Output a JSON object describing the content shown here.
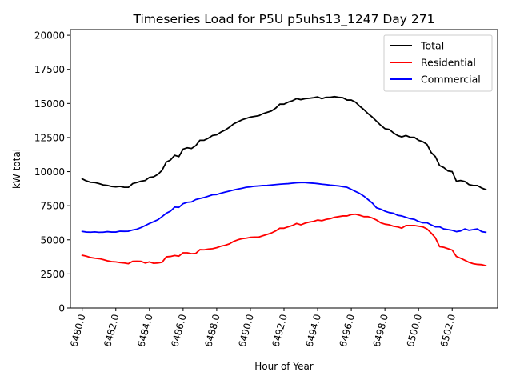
{
  "chart_data": {
    "type": "line",
    "title": "Timeseries Load for P5U p5uhs13_1247  Day 271",
    "xlabel": "Hour of Year",
    "ylabel": "kW total",
    "xlim": [
      6479.3,
      6504.7
    ],
    "ylim": [
      0,
      20417
    ],
    "x_ticks": [
      6480.0,
      6482.0,
      6484.0,
      6486.0,
      6488.0,
      6490.0,
      6492.0,
      6494.0,
      6496.0,
      6498.0,
      6500.0,
      6502.0
    ],
    "x_tick_labels": [
      "6480.0",
      "6482.0",
      "6484.0",
      "6486.0",
      "6488.0",
      "6490.0",
      "6492.0",
      "6494.0",
      "6496.0",
      "6498.0",
      "6500.0",
      "6502.0"
    ],
    "y_ticks": [
      0,
      2500,
      5000,
      7500,
      10000,
      12500,
      15000,
      17500,
      20000
    ],
    "y_tick_labels": [
      "0",
      "2500",
      "5000",
      "7500",
      "10000",
      "12500",
      "15000",
      "17500",
      "20000"
    ],
    "legend_position": "upper right",
    "x_start": 6480,
    "x_step": 0.25,
    "series": [
      {
        "name": "Total",
        "color": "#000000",
        "values": [
          9470,
          9320,
          9220,
          9200,
          9120,
          9030,
          8990,
          8910,
          8880,
          8920,
          8850,
          8850,
          9120,
          9200,
          9300,
          9350,
          9580,
          9620,
          9800,
          10100,
          10700,
          10850,
          11200,
          11100,
          11650,
          11750,
          11700,
          11900,
          12300,
          12300,
          12450,
          12650,
          12700,
          12900,
          13050,
          13250,
          13500,
          13650,
          13800,
          13900,
          14000,
          14050,
          14100,
          14250,
          14350,
          14450,
          14650,
          14950,
          14950,
          15100,
          15200,
          15350,
          15280,
          15350,
          15380,
          15420,
          15480,
          15350,
          15450,
          15450,
          15500,
          15450,
          15420,
          15250,
          15250,
          15100,
          14800,
          14550,
          14250,
          14000,
          13700,
          13400,
          13150,
          13100,
          12850,
          12650,
          12550,
          12650,
          12520,
          12520,
          12300,
          12200,
          12000,
          11400,
          11100,
          10450,
          10300,
          10050,
          10000,
          9300,
          9350,
          9280,
          9050,
          8980,
          8980,
          8800,
          8680
        ]
      },
      {
        "name": "Residential",
        "color": "#ff0000",
        "values": [
          3870,
          3800,
          3700,
          3650,
          3620,
          3550,
          3460,
          3400,
          3380,
          3330,
          3300,
          3250,
          3420,
          3430,
          3420,
          3300,
          3380,
          3280,
          3300,
          3350,
          3750,
          3780,
          3850,
          3800,
          4050,
          4050,
          3980,
          4000,
          4280,
          4270,
          4320,
          4350,
          4420,
          4530,
          4600,
          4700,
          4880,
          5000,
          5080,
          5120,
          5180,
          5200,
          5200,
          5300,
          5400,
          5500,
          5650,
          5850,
          5850,
          5950,
          6050,
          6200,
          6100,
          6220,
          6300,
          6350,
          6450,
          6400,
          6500,
          6550,
          6650,
          6700,
          6750,
          6750,
          6850,
          6880,
          6800,
          6700,
          6700,
          6600,
          6450,
          6250,
          6150,
          6100,
          6000,
          5950,
          5850,
          6050,
          6050,
          6050,
          6000,
          5950,
          5800,
          5500,
          5150,
          4500,
          4450,
          4350,
          4250,
          3780,
          3650,
          3500,
          3350,
          3250,
          3200,
          3180,
          3100
        ]
      },
      {
        "name": "Commercial",
        "color": "#0000ff",
        "values": [
          5620,
          5570,
          5560,
          5580,
          5550,
          5560,
          5600,
          5570,
          5570,
          5630,
          5620,
          5630,
          5720,
          5780,
          5900,
          6050,
          6200,
          6330,
          6470,
          6700,
          6950,
          7100,
          7400,
          7380,
          7650,
          7750,
          7780,
          7950,
          8030,
          8100,
          8200,
          8300,
          8320,
          8420,
          8500,
          8570,
          8650,
          8720,
          8780,
          8850,
          8880,
          8930,
          8950,
          8980,
          8990,
          9020,
          9050,
          9080,
          9100,
          9120,
          9150,
          9180,
          9200,
          9200,
          9170,
          9150,
          9120,
          9080,
          9050,
          9010,
          8980,
          8950,
          8900,
          8850,
          8700,
          8550,
          8400,
          8200,
          7950,
          7700,
          7350,
          7250,
          7100,
          7000,
          6950,
          6800,
          6750,
          6650,
          6550,
          6500,
          6350,
          6250,
          6250,
          6100,
          5950,
          5950,
          5800,
          5750,
          5700,
          5600,
          5650,
          5800,
          5700,
          5750,
          5800,
          5600,
          5550
        ]
      }
    ]
  }
}
